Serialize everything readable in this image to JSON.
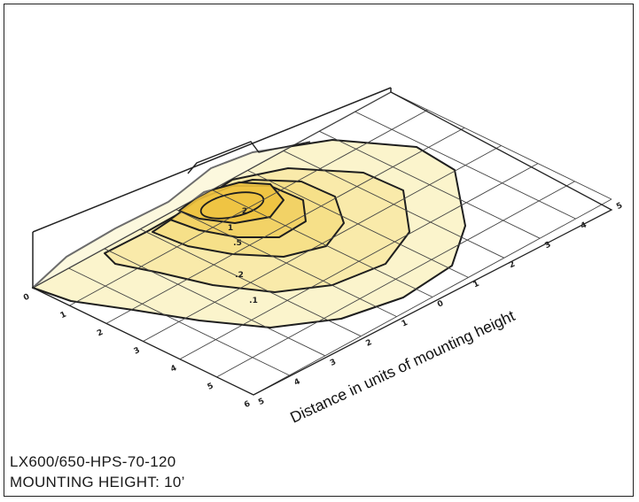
{
  "caption": {
    "model": "LX600/650-HPS-70-120",
    "mounting": "MOUNTING HEIGHT: 10’"
  },
  "axis": {
    "label": "Distance in units of mounting height",
    "left_ticks": [
      "0",
      "1",
      "2",
      "3",
      "4",
      "5",
      "6"
    ],
    "front_ticks": [
      "5",
      "4",
      "3",
      "2",
      "1",
      "0",
      "1",
      "2",
      "3",
      "4",
      "5"
    ]
  },
  "contours": [
    {
      "label": ".1",
      "fill": "#fbf3c6"
    },
    {
      "label": ".2",
      "fill": "#f8e9a6"
    },
    {
      "label": ".5",
      "fill": "#f5df85"
    },
    {
      "label": "1",
      "fill": "#f2d063"
    },
    {
      "label": "2",
      "fill": "#eec23f"
    }
  ],
  "colors": {
    "line": "#1e1e1e",
    "grid": "#444444"
  }
}
